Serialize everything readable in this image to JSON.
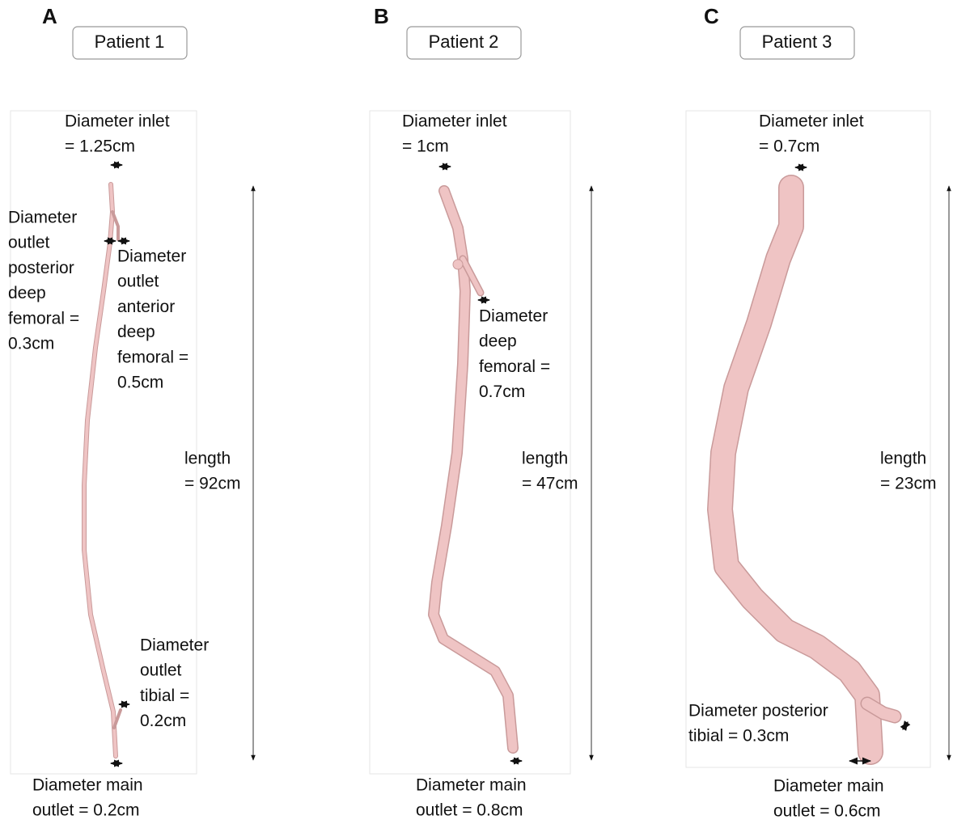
{
  "panels": [
    {
      "label": "A",
      "title": "Patient 1",
      "annotations": [
        {
          "lines": [
            "Diameter inlet",
            "= 1.25cm"
          ]
        },
        {
          "lines": [
            "Diameter",
            "outlet",
            "posterior",
            "deep",
            "femoral =",
            "0.3cm"
          ]
        },
        {
          "lines": [
            "Diameter",
            "outlet",
            "anterior",
            "deep",
            "femoral =",
            "0.5cm"
          ]
        },
        {
          "lines": [
            "length",
            "= 92cm"
          ]
        },
        {
          "lines": [
            "Diameter",
            "outlet",
            "tibial =",
            "0.2cm"
          ]
        },
        {
          "lines": [
            "Diameter main",
            "outlet = 0.2cm"
          ]
        }
      ]
    },
    {
      "label": "B",
      "title": "Patient 2",
      "annotations": [
        {
          "lines": [
            "Diameter inlet",
            "= 1cm"
          ]
        },
        {
          "lines": [
            "Diameter",
            "deep",
            "femoral =",
            "0.7cm"
          ]
        },
        {
          "lines": [
            "length",
            "= 47cm"
          ]
        },
        {
          "lines": [
            "Diameter main",
            "outlet = 0.8cm"
          ]
        }
      ]
    },
    {
      "label": "C",
      "title": "Patient 3",
      "annotations": [
        {
          "lines": [
            "Diameter inlet",
            "= 0.7cm"
          ]
        },
        {
          "lines": [
            "length",
            "= 23cm"
          ]
        },
        {
          "lines": [
            "Diameter posterior",
            "tibial = 0.3cm"
          ]
        },
        {
          "lines": [
            "Diameter main",
            "outlet = 0.6cm"
          ]
        }
      ]
    }
  ]
}
